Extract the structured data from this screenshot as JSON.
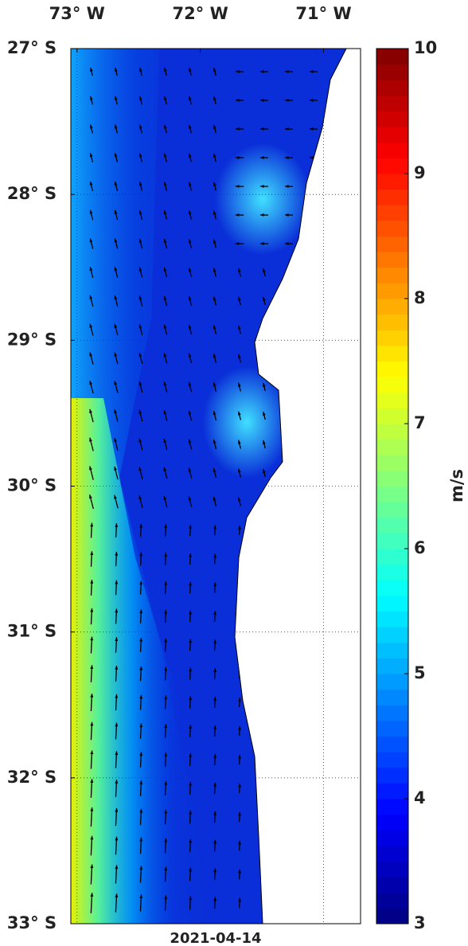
{
  "map": {
    "xlim": [
      -73.05,
      -70.7
    ],
    "ylim": [
      -33,
      -27
    ],
    "xticks": [
      {
        "value": -73,
        "label": "73° W"
      },
      {
        "value": -72,
        "label": "72° W"
      },
      {
        "value": -71,
        "label": "71° W"
      }
    ],
    "yticks": [
      {
        "value": -27,
        "label": "27° S"
      },
      {
        "value": -28,
        "label": "28° S"
      },
      {
        "value": -29,
        "label": "29° S"
      },
      {
        "value": -30,
        "label": "30° S"
      },
      {
        "value": -31,
        "label": "31° S"
      },
      {
        "value": -32,
        "label": "32° S"
      },
      {
        "value": -33,
        "label": "33° S"
      }
    ],
    "grid": true,
    "date": "2021-04-14"
  },
  "colorbar": {
    "label": "m/s",
    "lim": [
      3,
      10
    ],
    "ticks": [
      3,
      4,
      5,
      6,
      7,
      8,
      9,
      10
    ],
    "colormap": "jet"
  }
}
